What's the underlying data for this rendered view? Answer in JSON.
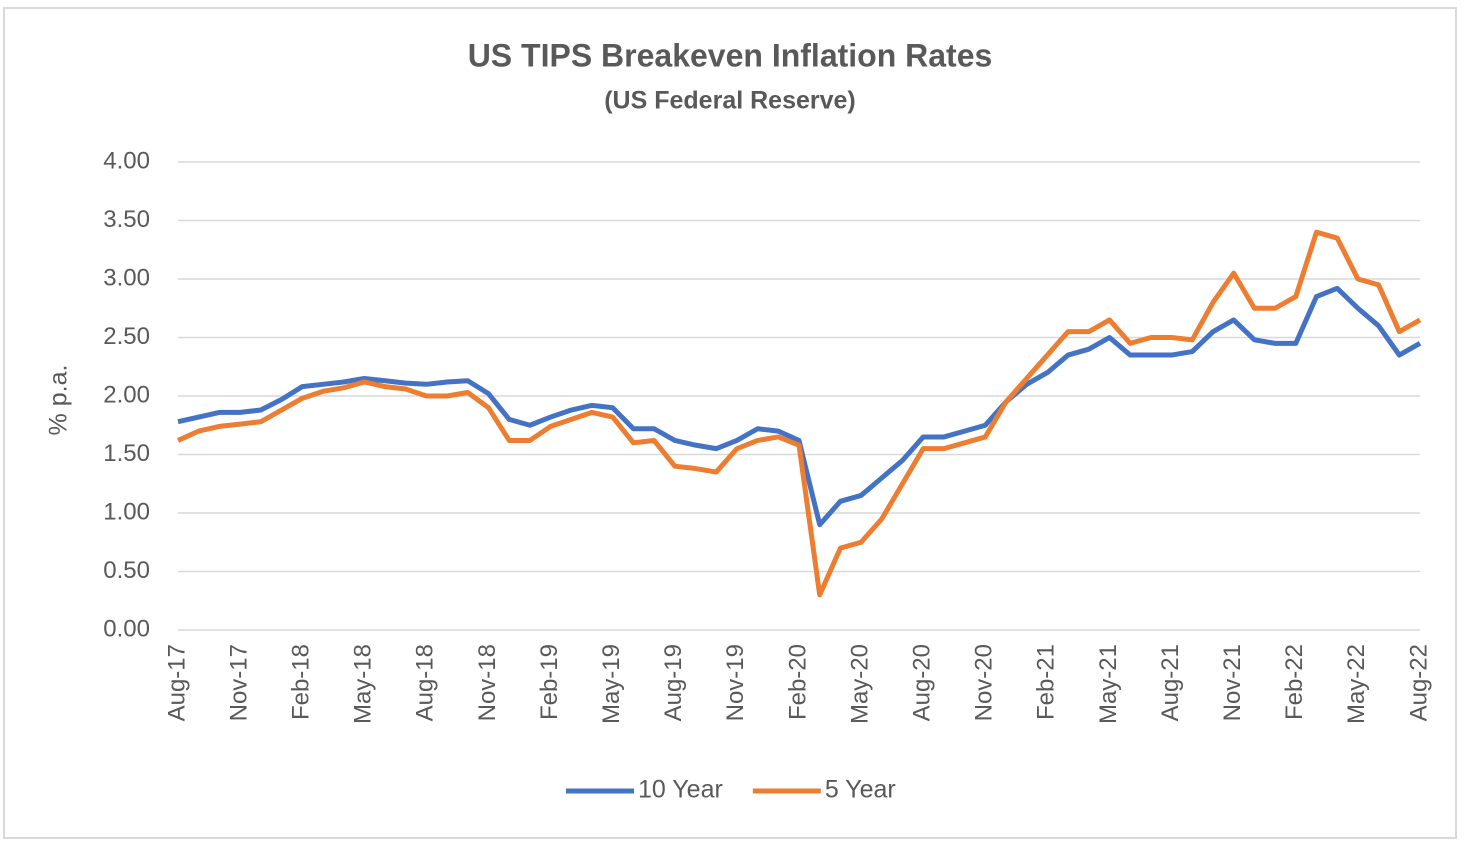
{
  "chart_data": {
    "type": "line",
    "title": "US TIPS Breakeven Inflation Rates",
    "subtitle": "(US Federal Reserve)",
    "y_label": "% p.a.",
    "categories": [
      "Aug-17",
      null,
      null,
      "Nov-17",
      null,
      null,
      "Feb-18",
      null,
      null,
      "May-18",
      null,
      null,
      "Aug-18",
      null,
      null,
      "Nov-18",
      null,
      null,
      "Feb-19",
      null,
      null,
      "May-19",
      null,
      null,
      "Aug-19",
      null,
      null,
      "Nov-19",
      null,
      null,
      "Feb-20",
      null,
      null,
      "May-20",
      null,
      null,
      "Aug-20",
      null,
      null,
      "Nov-20",
      null,
      null,
      "Feb-21",
      null,
      null,
      "May-21",
      null,
      null,
      "Aug-21",
      null,
      null,
      "Nov-21",
      null,
      null,
      "Feb-22",
      null,
      null,
      "May-22",
      null,
      null,
      "Aug-22"
    ],
    "series": [
      {
        "name": "10 Year",
        "color": "#4472c4",
        "values": [
          1.78,
          1.82,
          1.86,
          1.86,
          1.88,
          1.97,
          2.08,
          2.1,
          2.12,
          2.15,
          2.13,
          2.11,
          2.1,
          2.12,
          2.13,
          2.02,
          1.8,
          1.75,
          1.82,
          1.88,
          1.92,
          1.9,
          1.72,
          1.72,
          1.62,
          1.58,
          1.55,
          1.62,
          1.72,
          1.7,
          1.62,
          0.9,
          1.1,
          1.15,
          1.3,
          1.45,
          1.65,
          1.65,
          1.7,
          1.75,
          1.95,
          2.1,
          2.2,
          2.35,
          2.4,
          2.5,
          2.35,
          2.35,
          2.35,
          2.38,
          2.55,
          2.65,
          2.48,
          2.45,
          2.45,
          2.85,
          2.92,
          2.75,
          2.6,
          2.35,
          2.45
        ]
      },
      {
        "name": "5 Year",
        "color": "#ed7d31",
        "values": [
          1.62,
          1.7,
          1.74,
          1.76,
          1.78,
          1.88,
          1.98,
          2.04,
          2.07,
          2.12,
          2.08,
          2.06,
          2.0,
          2.0,
          2.03,
          1.9,
          1.62,
          1.62,
          1.74,
          1.8,
          1.86,
          1.82,
          1.6,
          1.62,
          1.4,
          1.38,
          1.35,
          1.55,
          1.62,
          1.65,
          1.58,
          0.3,
          0.7,
          0.75,
          0.95,
          1.25,
          1.55,
          1.55,
          1.6,
          1.65,
          1.95,
          2.15,
          2.35,
          2.55,
          2.55,
          2.65,
          2.45,
          2.5,
          2.5,
          2.48,
          2.8,
          3.05,
          2.75,
          2.75,
          2.85,
          3.4,
          3.35,
          3.0,
          2.95,
          2.55,
          2.65
        ]
      }
    ],
    "ylim": [
      0,
      4
    ],
    "yticks": [
      {
        "value": 0,
        "label": "0.00"
      },
      {
        "value": 0.5,
        "label": "0.50"
      },
      {
        "value": 1,
        "label": "1.00"
      },
      {
        "value": 1.5,
        "label": "1.50"
      },
      {
        "value": 2,
        "label": "2.00"
      },
      {
        "value": 2.5,
        "label": "2.50"
      },
      {
        "value": 3,
        "label": "3.00"
      },
      {
        "value": 3.5,
        "label": "3.50"
      },
      {
        "value": 4,
        "label": "4.00"
      }
    ],
    "grid": true,
    "legend": "bottom"
  }
}
